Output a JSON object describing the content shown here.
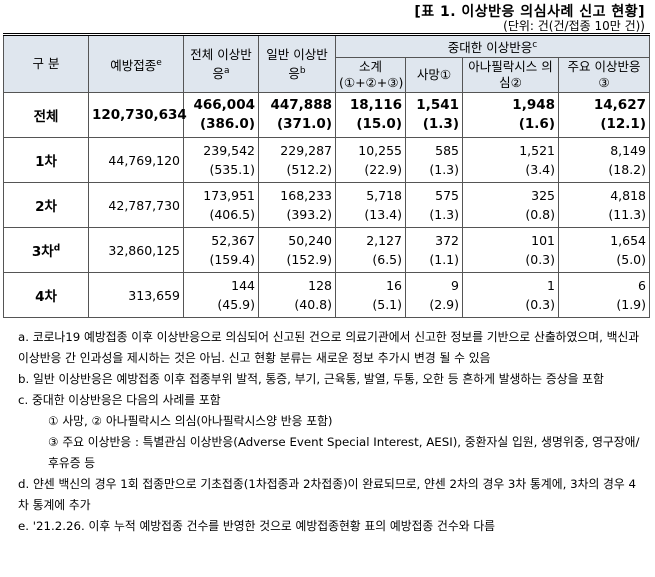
{
  "title": "[표 1. 이상반응 의심사례 신고 현황]",
  "unit": "(단위: 건(건/접종 10만 건))",
  "table": {
    "headers": [
      {
        "text": "구 분"
      },
      {
        "text": "예방접종",
        "sup": "e"
      },
      {
        "text": "전체 이상반응",
        "sup": "a"
      },
      {
        "text": "일반 이상반응",
        "sup": "b"
      }
    ],
    "group_header": {
      "text": "중대한 이상반응",
      "sup": "c"
    },
    "sub_headers": [
      "소계 (①+②+③)",
      "사망①",
      "아나필락시스 의심②",
      "주요 이상반응③"
    ],
    "rows": [
      {
        "label": "전체",
        "doses": "120,730,634",
        "cells": [
          {
            "count": "466,004",
            "rate": "(386.0)"
          },
          {
            "count": "447,888",
            "rate": "(371.0)"
          },
          {
            "count": "18,116",
            "rate": "(15.0)"
          },
          {
            "count": "1,541",
            "rate": "(1.3)"
          },
          {
            "count": "1,948",
            "rate": "(1.6)"
          },
          {
            "count": "14,627",
            "rate": "(12.1)"
          }
        ]
      },
      {
        "label": "1차",
        "doses": "44,769,120",
        "cells": [
          {
            "count": "239,542",
            "rate": "(535.1)"
          },
          {
            "count": "229,287",
            "rate": "(512.2)"
          },
          {
            "count": "10,255",
            "rate": "(22.9)"
          },
          {
            "count": "585",
            "rate": "(1.3)"
          },
          {
            "count": "1,521",
            "rate": "(3.4)"
          },
          {
            "count": "8,149",
            "rate": "(18.2)"
          }
        ]
      },
      {
        "label": "2차",
        "doses": "42,787,730",
        "cells": [
          {
            "count": "173,951",
            "rate": "(406.5)"
          },
          {
            "count": "168,233",
            "rate": "(393.2)"
          },
          {
            "count": "5,718",
            "rate": "(13.4)"
          },
          {
            "count": "575",
            "rate": "(1.3)"
          },
          {
            "count": "325",
            "rate": "(0.8)"
          },
          {
            "count": "4,818",
            "rate": "(11.3)"
          }
        ]
      },
      {
        "label": "3차",
        "sup": "d",
        "doses": "32,860,125",
        "cells": [
          {
            "count": "52,367",
            "rate": "(159.4)"
          },
          {
            "count": "50,240",
            "rate": "(152.9)"
          },
          {
            "count": "2,127",
            "rate": "(6.5)"
          },
          {
            "count": "372",
            "rate": "(1.1)"
          },
          {
            "count": "101",
            "rate": "(0.3)"
          },
          {
            "count": "1,654",
            "rate": "(5.0)"
          }
        ]
      },
      {
        "label": "4차",
        "doses": "313,659",
        "cells": [
          {
            "count": "144",
            "rate": "(45.9)"
          },
          {
            "count": "128",
            "rate": "(40.8)"
          },
          {
            "count": "16",
            "rate": "(5.1)"
          },
          {
            "count": "9",
            "rate": "(2.9)"
          },
          {
            "count": "1",
            "rate": "(0.3)"
          },
          {
            "count": "6",
            "rate": "(1.9)"
          }
        ]
      }
    ]
  },
  "footnotes": [
    {
      "text": "a. 코로나19 예방접종 이후 이상반응으로 의심되어 신고된 건으로 의료기관에서 신고한 정보를 기반으로 산출하였으며, 백신과 이상반응 간 인과성을 제시하는 것은 아님. 신고 현황 분류는 새로운 정보 추가시 변경 될 수 있음"
    },
    {
      "text": "b. 일반 이상반응은 예방접종 이후 접종부위 발적, 통증, 부기, 근육통, 발열, 두통, 오한 등 흔하게 발생하는 증상을 포함"
    },
    {
      "text": "c. 중대한 이상반응은 다음의 사례를 포함",
      "items": [
        "① 사망, ② 아나필락시스 의심(아나필락시스양 반응 포함)",
        "③ 주요 이상반응 : 특별관심 이상반응(Adverse Event Special Interest, AESI), 중환자실 입원, 생명위중, 영구장애/후유증 등"
      ]
    },
    {
      "text": "d. 얀센 백신의 경우 1회 접종만으로 기초접종(1차접종과 2차접종)이 완료되므로, 얀센 2차의 경우 3차 통계에, 3차의 경우 4차 통계에 추가"
    },
    {
      "text": "e. '21.2.26. 이후 누적 예방접종 건수를 반영한 것으로 예방접종현황 표의 예방접종 건수와 다름"
    }
  ]
}
